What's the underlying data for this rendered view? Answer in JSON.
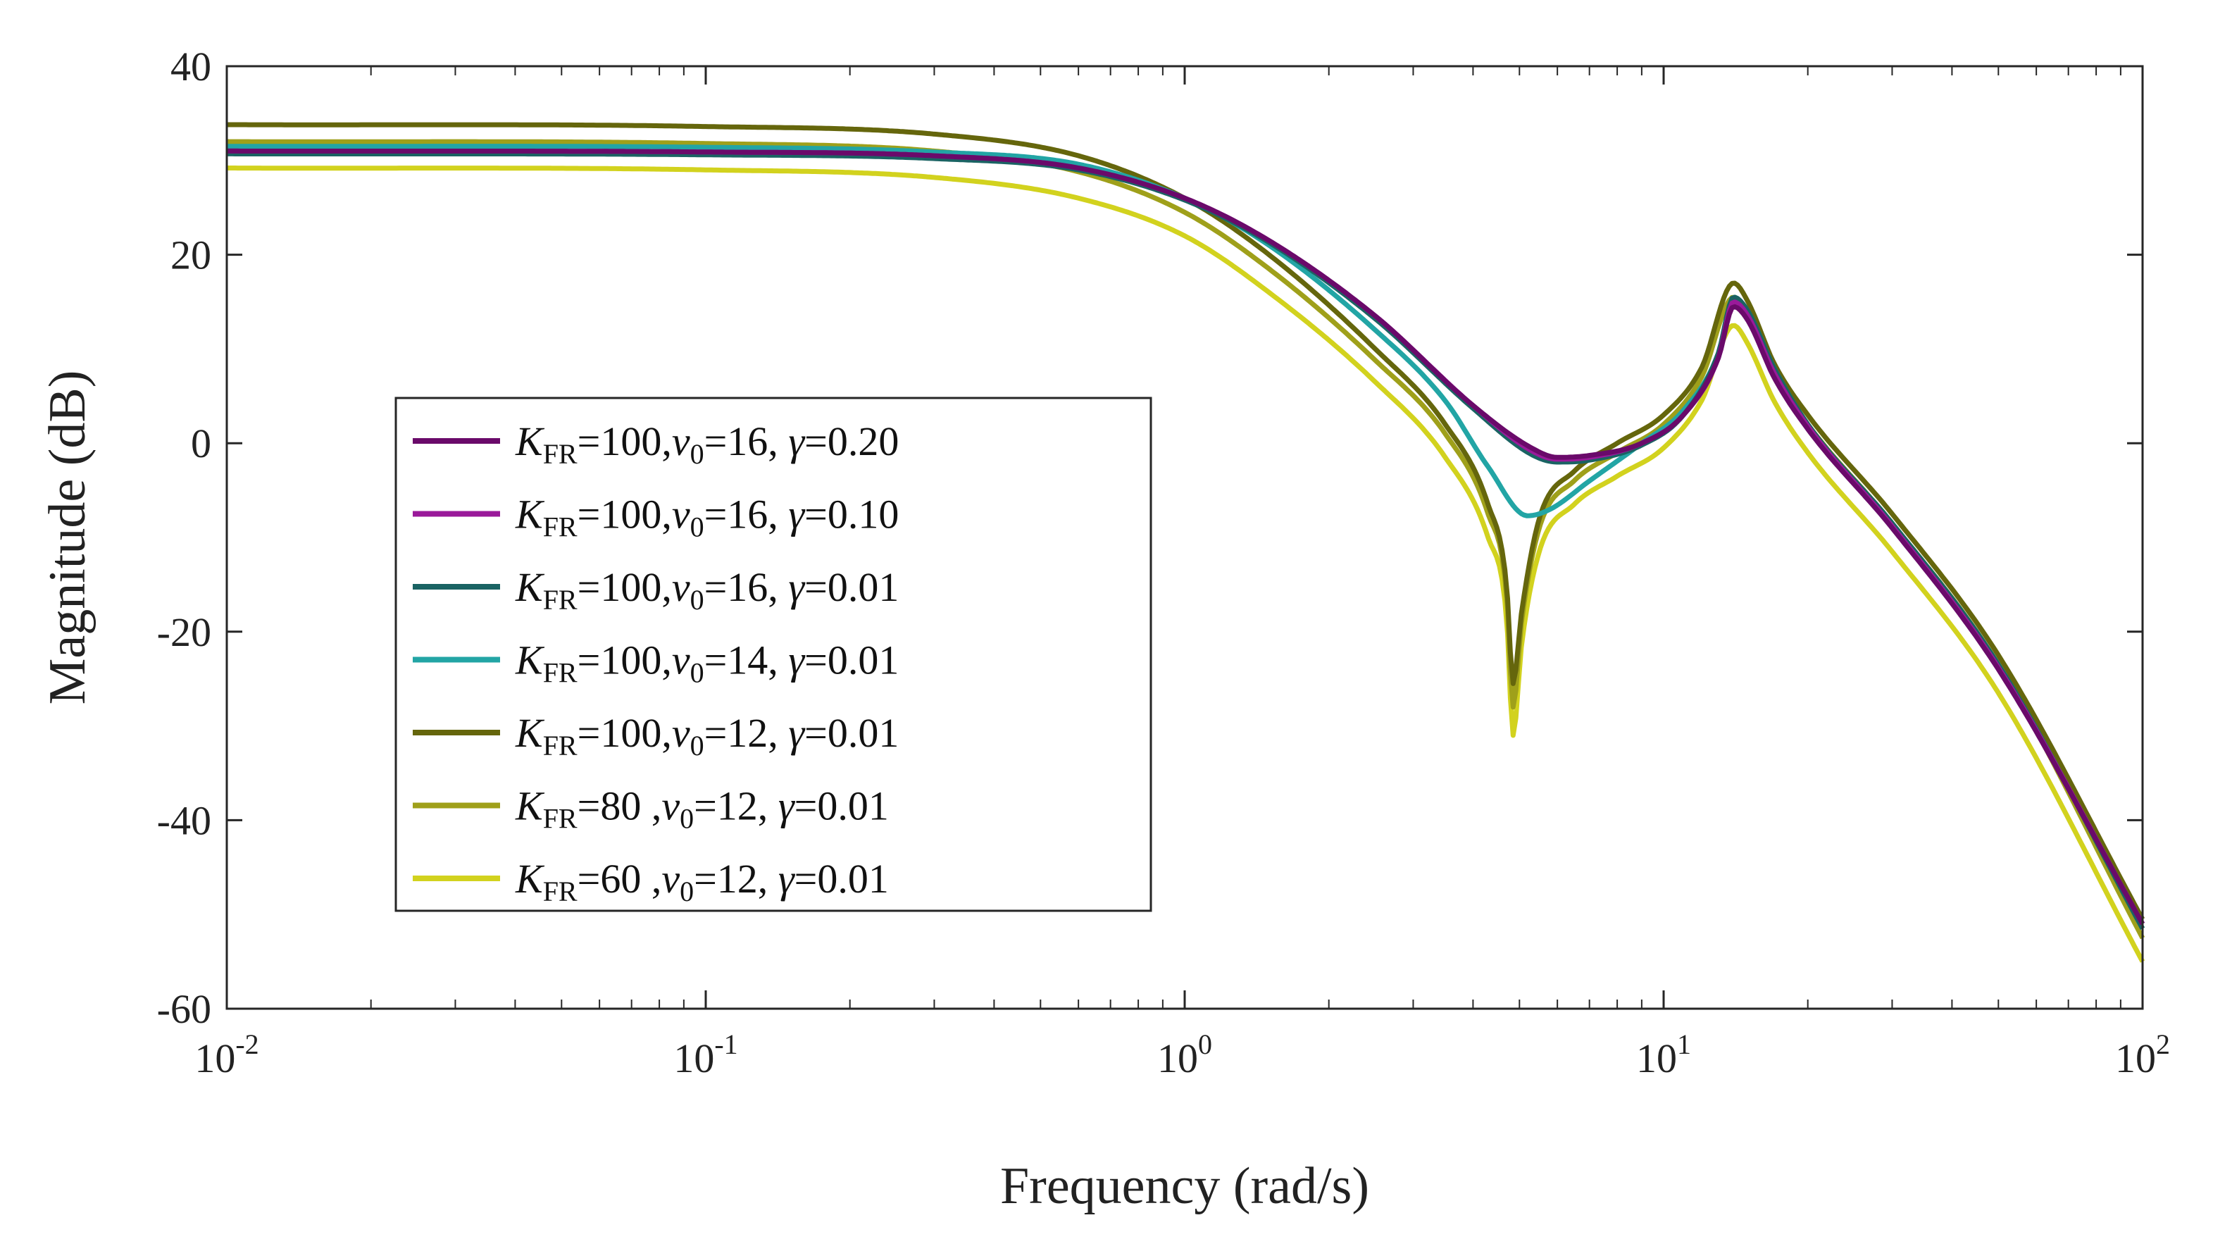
{
  "chart_data": {
    "type": "line",
    "title": "",
    "xlabel": "Frequency (rad/s)",
    "ylabel": "Magnitude (dB)",
    "xscale": "log",
    "xlim": [
      0.01,
      100
    ],
    "ylim": [
      -60,
      40
    ],
    "x_ticks": [
      {
        "base": "10",
        "exp": "-2"
      },
      {
        "base": "10",
        "exp": "-1"
      },
      {
        "base": "10",
        "exp": "0"
      },
      {
        "base": "10",
        "exp": "1"
      },
      {
        "base": "10",
        "exp": "2"
      }
    ],
    "y_ticks": [
      "40",
      "20",
      "0",
      "-20",
      "-40",
      "-60"
    ],
    "grid": false,
    "legend_position": "center-left",
    "series": [
      {
        "name": "KFR=100,v0=16, γ=0.20",
        "label": {
          "K": "K",
          "K_sub": "FR",
          "k_val": "=100,",
          "v": "v",
          "v_sub": "0",
          "v_val": "=16, ",
          "g": "γ",
          "g_val": "=0.20"
        },
        "color": "#6a0a6a",
        "points": [
          [
            0.01,
            31
          ],
          [
            0.1,
            30.9
          ],
          [
            0.3,
            30.5
          ],
          [
            0.6,
            29.2
          ],
          [
            1,
            26
          ],
          [
            1.5,
            21.5
          ],
          [
            2.5,
            13.5
          ],
          [
            4,
            4
          ],
          [
            5.3,
            -0.5
          ],
          [
            6,
            -1.5
          ],
          [
            7,
            -1.3
          ],
          [
            9,
            0
          ],
          [
            11,
            3
          ],
          [
            13,
            9
          ],
          [
            14,
            14.5
          ],
          [
            15,
            13
          ],
          [
            17,
            7
          ],
          [
            20,
            1.5
          ],
          [
            30,
            -9
          ],
          [
            50,
            -24
          ],
          [
            100,
            -51
          ]
        ]
      },
      {
        "name": "KFR=100,v0=16, γ=0.10",
        "label": {
          "K": "K",
          "K_sub": "FR",
          "k_val": "=100,",
          "v": "v",
          "v_sub": "0",
          "v_val": "=16, ",
          "g": "γ",
          "g_val": "=0.10"
        },
        "color": "#9a1a9a",
        "points": [
          [
            0.01,
            31
          ],
          [
            0.1,
            30.9
          ],
          [
            0.3,
            30.5
          ],
          [
            0.6,
            29.2
          ],
          [
            1,
            26
          ],
          [
            1.5,
            21.5
          ],
          [
            2.5,
            13.5
          ],
          [
            4,
            4
          ],
          [
            5.3,
            -0.8
          ],
          [
            6,
            -1.7
          ],
          [
            7,
            -1.5
          ],
          [
            9,
            0
          ],
          [
            11,
            3
          ],
          [
            13,
            9
          ],
          [
            14,
            15
          ],
          [
            15,
            13.5
          ],
          [
            17,
            7.5
          ],
          [
            20,
            1.8
          ],
          [
            30,
            -8.8
          ],
          [
            50,
            -23.8
          ],
          [
            100,
            -51
          ]
        ]
      },
      {
        "name": "KFR=100,v0=16, γ=0.01",
        "label": {
          "K": "K",
          "K_sub": "FR",
          "k_val": "=100,",
          "v": "v",
          "v_sub": "0",
          "v_val": "=16, ",
          "g": "γ",
          "g_val": "=0.01"
        },
        "color": "#1a6363",
        "points": [
          [
            0.01,
            30.7
          ],
          [
            0.1,
            30.6
          ],
          [
            0.3,
            30.2
          ],
          [
            0.6,
            29
          ],
          [
            1,
            25.8
          ],
          [
            1.5,
            21.3
          ],
          [
            2.5,
            13.2
          ],
          [
            4,
            3.7
          ],
          [
            5.3,
            -1.2
          ],
          [
            6,
            -2
          ],
          [
            7,
            -1.8
          ],
          [
            9,
            -0.2
          ],
          [
            11,
            3
          ],
          [
            13,
            9.5
          ],
          [
            14,
            15.5
          ],
          [
            15,
            14
          ],
          [
            17,
            8
          ],
          [
            20,
            2
          ],
          [
            30,
            -8.5
          ],
          [
            50,
            -23.5
          ],
          [
            100,
            -51.5
          ]
        ]
      },
      {
        "name": "KFR=100,v0=14, γ=0.01",
        "label": {
          "K": "K",
          "K_sub": "FR",
          "k_val": "=100,",
          "v": "v",
          "v_sub": "0",
          "v_val": "=14, ",
          "g": "γ",
          "g_val": "=0.01"
        },
        "color": "#22a5a5",
        "points": [
          [
            0.01,
            31.5
          ],
          [
            0.1,
            31.4
          ],
          [
            0.3,
            30.9
          ],
          [
            0.6,
            29.6
          ],
          [
            1,
            26
          ],
          [
            1.5,
            21
          ],
          [
            2.5,
            12
          ],
          [
            3.5,
            4.5
          ],
          [
            4.3,
            -2.5
          ],
          [
            5.2,
            -7.7
          ],
          [
            5.8,
            -7
          ],
          [
            7,
            -4
          ],
          [
            9,
            0
          ],
          [
            11,
            3.5
          ],
          [
            13,
            9.5
          ],
          [
            14,
            15.5
          ],
          [
            15,
            14
          ],
          [
            17,
            8
          ],
          [
            20,
            2
          ],
          [
            30,
            -8.5
          ],
          [
            50,
            -23.5
          ],
          [
            100,
            -51.5
          ]
        ]
      },
      {
        "name": "KFR=100,v0=12, γ=0.01",
        "label": {
          "K": "K",
          "K_sub": "FR",
          "k_val": "=100,",
          "v": "v",
          "v_sub": "0",
          "v_val": "=12, ",
          "g": "γ",
          "g_val": "=0.01"
        },
        "color": "#65660c",
        "points": [
          [
            0.01,
            33.8
          ],
          [
            0.1,
            33.6
          ],
          [
            0.3,
            32.8
          ],
          [
            0.6,
            30.5
          ],
          [
            1,
            26
          ],
          [
            1.5,
            20
          ],
          [
            2.5,
            10
          ],
          [
            3.5,
            2
          ],
          [
            4.3,
            -6.5
          ],
          [
            4.7,
            -15
          ],
          [
            4.85,
            -25.5
          ],
          [
            5.05,
            -18
          ],
          [
            5.5,
            -8
          ],
          [
            6.5,
            -3
          ],
          [
            8,
            0
          ],
          [
            10,
            3
          ],
          [
            12,
            8
          ],
          [
            14,
            17
          ],
          [
            15,
            15
          ],
          [
            17,
            8.5
          ],
          [
            20,
            3
          ],
          [
            30,
            -7.5
          ],
          [
            50,
            -22.5
          ],
          [
            100,
            -50.5
          ]
        ]
      },
      {
        "name": "KFR=80 ,v0=12, γ=0.01",
        "label": {
          "K": "K",
          "K_sub": "FR",
          "k_val": "=80  ,",
          "v": "v",
          "v_sub": "0",
          "v_val": "=12, ",
          "g": "γ",
          "g_val": "=0.01"
        },
        "color": "#9fa01a",
        "points": [
          [
            0.01,
            32
          ],
          [
            0.1,
            31.8
          ],
          [
            0.3,
            31
          ],
          [
            0.6,
            28.8
          ],
          [
            1,
            24.5
          ],
          [
            1.5,
            18.5
          ],
          [
            2.5,
            8.8
          ],
          [
            3.5,
            1
          ],
          [
            4.3,
            -7.5
          ],
          [
            4.7,
            -16
          ],
          [
            4.85,
            -28
          ],
          [
            5.05,
            -19
          ],
          [
            5.5,
            -9
          ],
          [
            6.5,
            -4
          ],
          [
            8,
            -1
          ],
          [
            10,
            2
          ],
          [
            12,
            7
          ],
          [
            14,
            15.5
          ],
          [
            15,
            13.5
          ],
          [
            17,
            7.5
          ],
          [
            20,
            2
          ],
          [
            30,
            -8.5
          ],
          [
            50,
            -23.5
          ],
          [
            100,
            -52.5
          ]
        ]
      },
      {
        "name": "KFR=60 ,v0=12, γ=0.01",
        "label": {
          "K": "K",
          "K_sub": "FR",
          "k_val": "=60  ,",
          "v": "v",
          "v_sub": "0",
          "v_val": "=12, ",
          "g": "γ",
          "g_val": "=0.01"
        },
        "color": "#d2d21e",
        "points": [
          [
            0.01,
            29.2
          ],
          [
            0.1,
            29
          ],
          [
            0.3,
            28.2
          ],
          [
            0.6,
            26
          ],
          [
            1,
            22
          ],
          [
            1.5,
            16
          ],
          [
            2.5,
            6.5
          ],
          [
            3.5,
            -1.5
          ],
          [
            4.3,
            -10
          ],
          [
            4.7,
            -18.5
          ],
          [
            4.85,
            -31
          ],
          [
            5.05,
            -21.5
          ],
          [
            5.5,
            -11.5
          ],
          [
            6.5,
            -6.5
          ],
          [
            8,
            -3.5
          ],
          [
            10,
            -0.5
          ],
          [
            12,
            4.5
          ],
          [
            14,
            12.5
          ],
          [
            15,
            10.5
          ],
          [
            17,
            4.5
          ],
          [
            20,
            -1
          ],
          [
            30,
            -11.5
          ],
          [
            50,
            -26.5
          ],
          [
            100,
            -55
          ]
        ]
      }
    ]
  }
}
